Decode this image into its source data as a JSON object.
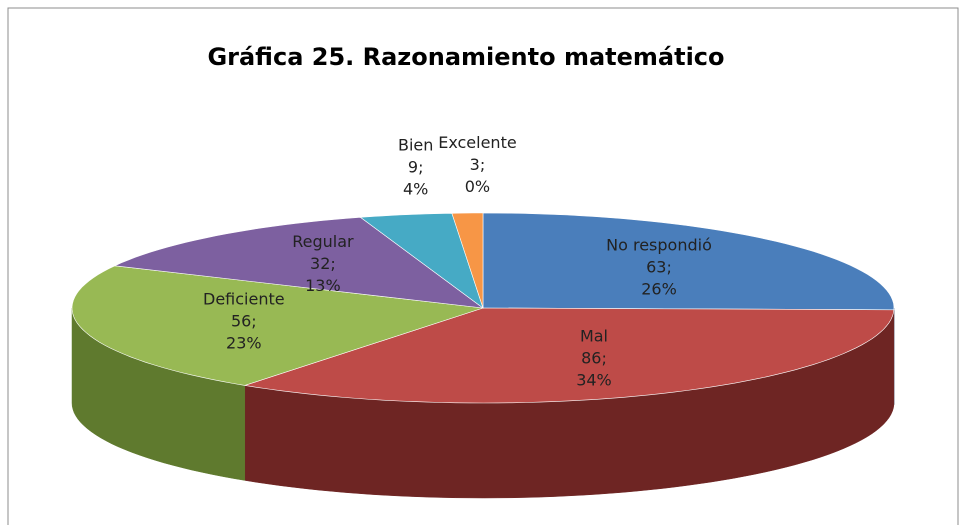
{
  "chart_data": {
    "type": "pie3d",
    "title": "Gráfica 25. Razonamiento matemático",
    "categories": [
      "No respondió",
      "Mal",
      "Deficiente",
      "Regular",
      "Bien",
      "Excelente"
    ],
    "values": [
      63,
      86,
      56,
      32,
      9,
      3
    ],
    "value_labels": [
      "63;",
      "86;",
      "56;",
      "32;",
      "9;",
      "3;"
    ],
    "percent_labels": [
      "26%",
      "34%",
      "23%",
      "13%",
      "4%",
      "0%"
    ],
    "colors": [
      "#4a7ebb",
      "#be4b48",
      "#98b954",
      "#7d60a0",
      "#46aac5",
      "#f79646"
    ],
    "side_colors": [
      "#2f5582",
      "#6e2523",
      "#5f7a2e",
      "#4c3768",
      "#2a7185",
      "#a85f23"
    ]
  }
}
